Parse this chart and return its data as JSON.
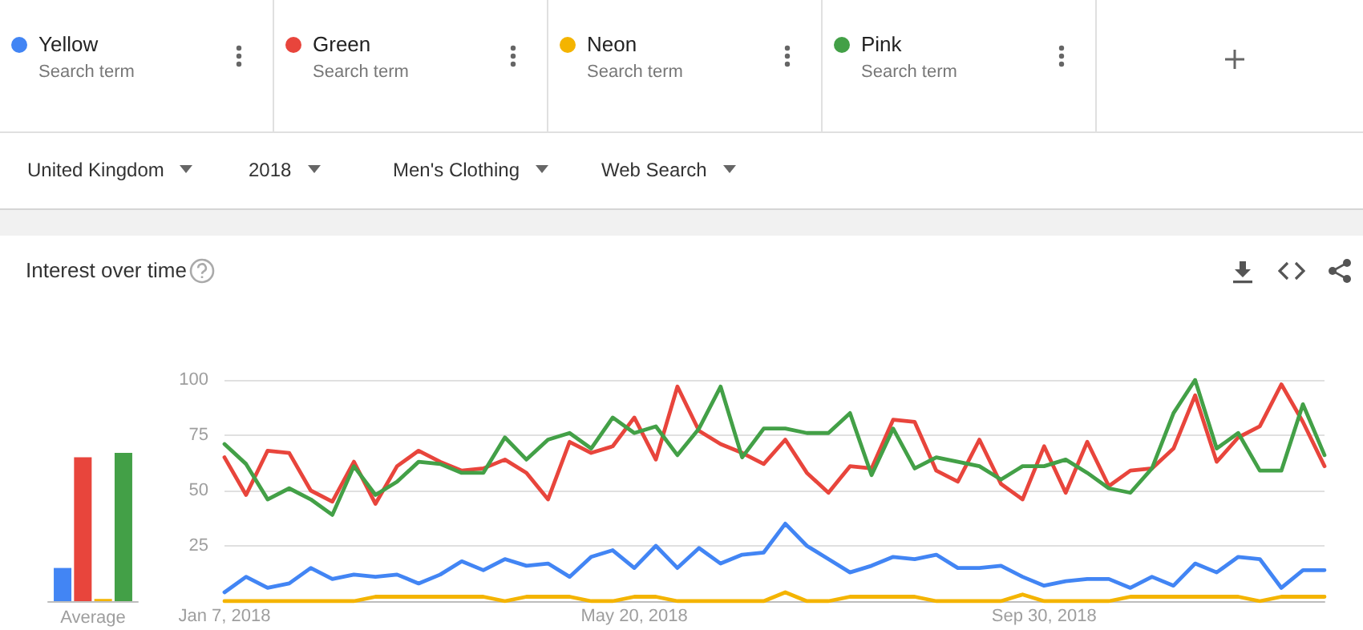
{
  "chart_data": [
    {
      "type": "line",
      "annotations": [
        "Search term",
        "Search term",
        "Search term",
        "Search term",
        "United Kingdom",
        "2018",
        "Men's Clothing",
        "Web Search"
      ],
      "x": [
        "2018-01-07",
        "2018-01-14",
        "2018-01-21",
        "2018-01-28",
        "2018-02-04",
        "2018-02-11",
        "2018-02-18",
        "2018-02-25",
        "2018-03-04",
        "2018-03-11",
        "2018-03-18",
        "2018-03-25",
        "2018-04-01",
        "2018-04-08",
        "2018-04-15",
        "2018-04-22",
        "2018-04-29",
        "2018-05-06",
        "2018-05-13",
        "2018-05-20",
        "2018-05-27",
        "2018-06-03",
        "2018-06-10",
        "2018-06-17",
        "2018-06-24",
        "2018-07-01",
        "2018-07-08",
        "2018-07-15",
        "2018-07-22",
        "2018-07-29",
        "2018-08-05",
        "2018-08-12",
        "2018-08-19",
        "2018-08-26",
        "2018-09-02",
        "2018-09-09",
        "2018-09-16",
        "2018-09-23",
        "2018-09-30",
        "2018-10-07",
        "2018-10-14",
        "2018-10-21",
        "2018-10-28",
        "2018-11-04",
        "2018-11-11",
        "2018-11-18",
        "2018-11-25",
        "2018-12-02",
        "2018-12-09",
        "2018-12-16",
        "2018-12-23",
        "2018-12-30"
      ],
      "series": [
        {
          "name": "Yellow",
          "color": "#4285f4",
          "values": [
            4,
            11,
            6,
            8,
            15,
            10,
            12,
            11,
            12,
            8,
            12,
            18,
            14,
            19,
            16,
            17,
            11,
            20,
            23,
            15,
            25,
            15,
            24,
            17,
            21,
            22,
            35,
            25,
            19,
            13,
            16,
            20,
            19,
            21,
            15,
            15,
            16,
            11,
            7,
            9,
            10,
            10,
            6,
            11,
            7,
            17,
            13,
            20,
            19,
            6,
            14,
            14
          ]
        },
        {
          "name": "Green",
          "color": "#e8453c",
          "values": [
            65,
            48,
            68,
            67,
            50,
            45,
            63,
            44,
            61,
            68,
            63,
            59,
            60,
            64,
            58,
            46,
            72,
            67,
            70,
            83,
            64,
            97,
            77,
            71,
            67,
            62,
            73,
            58,
            49,
            61,
            60,
            82,
            81,
            59,
            54,
            73,
            53,
            46,
            70,
            49,
            72,
            52,
            59,
            60,
            69,
            93,
            63,
            74,
            79,
            98,
            81,
            61
          ]
        },
        {
          "name": "Neon",
          "color": "#f4b400",
          "values": [
            0,
            0,
            0,
            0,
            0,
            0,
            0,
            2,
            2,
            2,
            2,
            2,
            2,
            0,
            2,
            2,
            2,
            0,
            0,
            2,
            2,
            0,
            0,
            0,
            0,
            0,
            4,
            0,
            0,
            2,
            2,
            2,
            2,
            0,
            0,
            0,
            0,
            3,
            0,
            0,
            0,
            0,
            2,
            2,
            2,
            2,
            2,
            2,
            0,
            2,
            2,
            2
          ]
        },
        {
          "name": "Pink",
          "color": "#43a047",
          "values": [
            71,
            62,
            46,
            51,
            46,
            39,
            61,
            48,
            54,
            63,
            62,
            58,
            58,
            74,
            64,
            73,
            76,
            69,
            83,
            76,
            79,
            66,
            78,
            97,
            65,
            78,
            78,
            76,
            76,
            85,
            57,
            78,
            60,
            65,
            63,
            61,
            55,
            61,
            61,
            64,
            58,
            51,
            49,
            60,
            85,
            100,
            69,
            76,
            59,
            59,
            89,
            66
          ]
        }
      ],
      "xlim": [
        "2018-01-07",
        "2018-12-30"
      ],
      "xticks": [
        {
          "value": "2018-01-07",
          "label": "Jan 7, 2018"
        },
        {
          "value": "2018-05-20",
          "label": "May 20, 2018"
        },
        {
          "value": "2018-09-30",
          "label": "Sep 30, 2018"
        }
      ],
      "ylim": [
        0,
        100
      ],
      "yticks": [
        {
          "value": 0,
          "label": null
        },
        25,
        50,
        75,
        100
      ],
      "grid": "y",
      "legend": "top",
      "marker": "none",
      "line_style": "solid"
    },
    {
      "type": "bar",
      "title": "Interest over time",
      "categories": [
        "Average"
      ],
      "series": [
        {
          "color": "#4285f4",
          "values": [
            15
          ]
        },
        {
          "color": "#e8453c",
          "values": [
            65
          ]
        },
        {
          "color": "#f4b400",
          "values": [
            1
          ]
        },
        {
          "color": "#43a047",
          "values": [
            67
          ]
        }
      ],
      "ylim": [
        0,
        100
      ],
      "tick_labels": "x",
      "grid": false
    }
  ]
}
